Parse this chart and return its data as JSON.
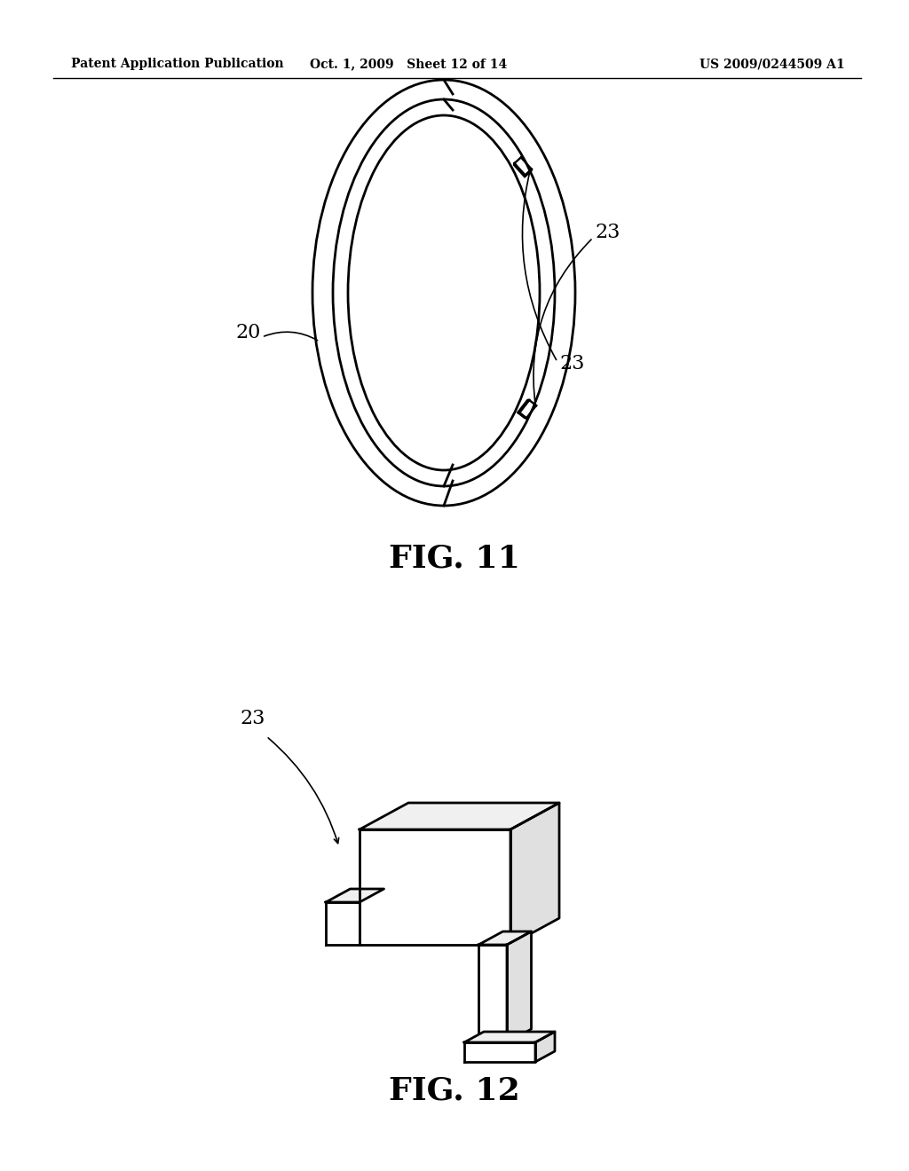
{
  "background_color": "#ffffff",
  "line_color": "#000000",
  "header_left": "Patent Application Publication",
  "header_mid": "Oct. 1, 2009   Sheet 12 of 14",
  "header_right": "US 2009/0244509 A1",
  "fig11_label": "FIG. 11",
  "fig12_label": "FIG. 12",
  "label_20": "20",
  "label_23": "23"
}
